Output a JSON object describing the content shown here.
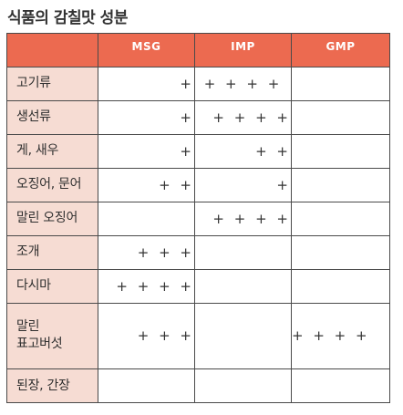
{
  "title": "식품의 감칠맛 성분",
  "columns": [
    "",
    "MSG",
    "IMP",
    "GMP"
  ],
  "rows": [
    {
      "label": "고기류",
      "msg": "+",
      "imp": "+ + + +",
      "gmp": ""
    },
    {
      "label": "생선류",
      "msg": "+",
      "imp": "+ + + +",
      "gmp": ""
    },
    {
      "label": "게, 새우",
      "msg": "+",
      "imp": "+ +",
      "gmp": ""
    },
    {
      "label": "오징어, 문어",
      "msg": "+ +",
      "imp": "+",
      "gmp": ""
    },
    {
      "label": "말린 오징어",
      "msg": "",
      "imp": "+ + + +",
      "gmp": ""
    },
    {
      "label": "조개",
      "msg": "+ + +",
      "imp": "",
      "gmp": ""
    },
    {
      "label": "다시마",
      "msg": "+ + + +",
      "imp": "",
      "gmp": ""
    },
    {
      "label": "말린 표고버섯",
      "label_line1": "말린",
      "label_line2": "표고버섯",
      "msg": "+ + +",
      "imp": "",
      "gmp": "+ + + +"
    },
    {
      "label": "된장, 간장",
      "msg": "",
      "imp": "",
      "gmp": ""
    }
  ],
  "colors": {
    "header_bg": "#ec6a50",
    "label_bg": "#f6dcd3",
    "border": "#4a4a4a"
  }
}
